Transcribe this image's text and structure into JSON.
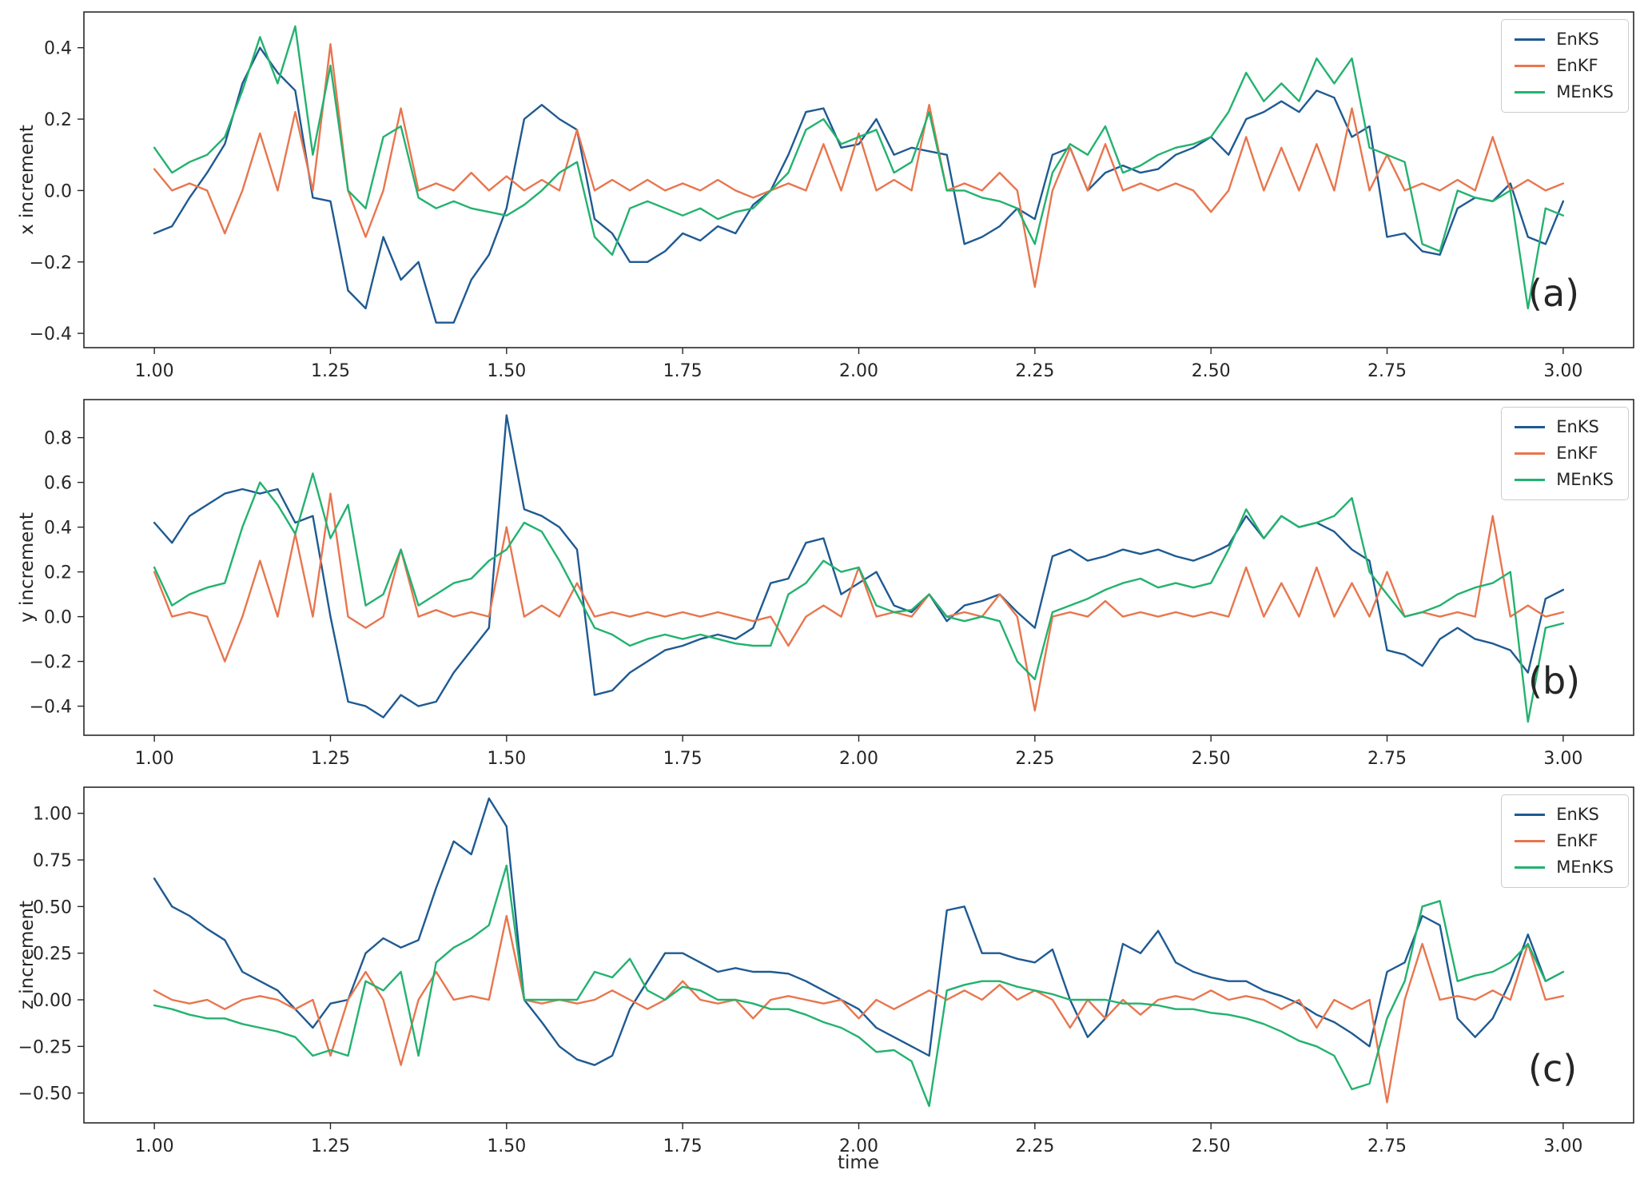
{
  "figure": {
    "background": "#ffffff",
    "xlabel": "time",
    "series_names": [
      "EnKS",
      "EnKF",
      "MEnKS"
    ],
    "series_colors": [
      "#1f5a92",
      "#e8764e",
      "#23b26f"
    ]
  },
  "chart_data": [
    {
      "id": "a",
      "type": "line",
      "panel_label": "(a)",
      "ylabel": "x increment",
      "xlabel": "",
      "x_start": 1.0,
      "x_step": 0.025,
      "xlim": [
        0.9,
        3.1
      ],
      "ylim": [
        -0.44,
        0.5
      ],
      "xticks": [
        1.0,
        1.25,
        1.5,
        1.75,
        2.0,
        2.25,
        2.5,
        2.75,
        3.0
      ],
      "xtick_labels": [
        "1.00",
        "1.25",
        "1.50",
        "1.75",
        "2.00",
        "2.25",
        "2.50",
        "2.75",
        "3.00"
      ],
      "yticks": [
        -0.4,
        -0.2,
        0.0,
        0.2,
        0.4
      ],
      "ytick_labels": [
        "−0.4",
        "−0.2",
        "0.0",
        "0.2",
        "0.4"
      ],
      "legend_position": "top-right",
      "grid": false,
      "series": [
        {
          "name": "EnKS",
          "color": "#1f5a92",
          "values": [
            -0.12,
            -0.1,
            -0.02,
            0.05,
            0.13,
            0.3,
            0.4,
            0.33,
            0.28,
            -0.02,
            -0.03,
            -0.28,
            -0.33,
            -0.13,
            -0.25,
            -0.2,
            -0.37,
            -0.37,
            -0.25,
            -0.18,
            -0.05,
            0.2,
            0.24,
            0.2,
            0.17,
            -0.08,
            -0.12,
            -0.2,
            -0.2,
            -0.17,
            -0.12,
            -0.14,
            -0.1,
            -0.12,
            -0.04,
            0.0,
            0.1,
            0.22,
            0.23,
            0.12,
            0.13,
            0.2,
            0.1,
            0.12,
            0.11,
            0.1,
            -0.15,
            -0.13,
            -0.1,
            -0.05,
            -0.08,
            0.1,
            0.12,
            0.0,
            0.05,
            0.07,
            0.05,
            0.06,
            0.1,
            0.12,
            0.15,
            0.1,
            0.2,
            0.22,
            0.25,
            0.22,
            0.28,
            0.26,
            0.15,
            0.18,
            -0.13,
            -0.12,
            -0.17,
            -0.18,
            -0.05,
            -0.02,
            -0.03,
            0.02,
            -0.13,
            -0.15,
            -0.03
          ]
        },
        {
          "name": "EnKF",
          "color": "#e8764e",
          "values": [
            0.06,
            0,
            0.02,
            0,
            -0.12,
            0,
            0.16,
            0,
            0.22,
            0,
            0.41,
            0,
            -0.13,
            0,
            0.23,
            0,
            0.02,
            0,
            0.05,
            0,
            0.04,
            0,
            0.03,
            0,
            0.17,
            0,
            0.03,
            0,
            0.03,
            0,
            0.02,
            0,
            0.03,
            0,
            -0.02,
            0,
            0.02,
            0,
            0.13,
            0,
            0.16,
            0,
            0.03,
            0,
            0.24,
            0,
            0.02,
            0,
            0.05,
            0,
            -0.27,
            0,
            0.12,
            0,
            0.13,
            0,
            0.02,
            0,
            0.02,
            0,
            -0.06,
            0,
            0.15,
            0,
            0.12,
            0,
            0.13,
            0,
            0.23,
            0,
            0.1,
            0,
            0.02,
            0,
            0.03,
            0,
            0.15,
            0,
            0.03,
            0,
            0.02
          ]
        },
        {
          "name": "MEnKS",
          "color": "#23b26f",
          "values": [
            0.12,
            0.05,
            0.08,
            0.1,
            0.15,
            0.28,
            0.43,
            0.3,
            0.46,
            0.1,
            0.35,
            0.0,
            -0.05,
            0.15,
            0.18,
            -0.02,
            -0.05,
            -0.03,
            -0.05,
            -0.06,
            -0.07,
            -0.04,
            0.0,
            0.05,
            0.08,
            -0.13,
            -0.18,
            -0.05,
            -0.03,
            -0.05,
            -0.07,
            -0.05,
            -0.08,
            -0.06,
            -0.05,
            0.0,
            0.05,
            0.17,
            0.2,
            0.13,
            0.15,
            0.17,
            0.05,
            0.08,
            0.22,
            0.0,
            0.0,
            -0.02,
            -0.03,
            -0.05,
            -0.15,
            0.05,
            0.13,
            0.1,
            0.18,
            0.05,
            0.07,
            0.1,
            0.12,
            0.13,
            0.15,
            0.22,
            0.33,
            0.25,
            0.3,
            0.25,
            0.37,
            0.3,
            0.37,
            0.12,
            0.1,
            0.08,
            -0.15,
            -0.17,
            0.0,
            -0.02,
            -0.03,
            0.0,
            -0.33,
            -0.05,
            -0.07
          ]
        }
      ]
    },
    {
      "id": "b",
      "type": "line",
      "panel_label": "(b)",
      "ylabel": "y increment",
      "xlabel": "",
      "x_start": 1.0,
      "x_step": 0.025,
      "xlim": [
        0.9,
        3.1
      ],
      "ylim": [
        -0.53,
        0.97
      ],
      "xticks": [
        1.0,
        1.25,
        1.5,
        1.75,
        2.0,
        2.25,
        2.5,
        2.75,
        3.0
      ],
      "xtick_labels": [
        "1.00",
        "1.25",
        "1.50",
        "1.75",
        "2.00",
        "2.25",
        "2.50",
        "2.75",
        "3.00"
      ],
      "yticks": [
        -0.4,
        -0.2,
        0.0,
        0.2,
        0.4,
        0.6,
        0.8
      ],
      "ytick_labels": [
        "−0.4",
        "−0.2",
        "0.0",
        "0.2",
        "0.4",
        "0.6",
        "0.8"
      ],
      "legend_position": "top-right",
      "grid": false,
      "series": [
        {
          "name": "EnKS",
          "color": "#1f5a92",
          "values": [
            0.42,
            0.33,
            0.45,
            0.5,
            0.55,
            0.57,
            0.55,
            0.57,
            0.42,
            0.45,
            0.0,
            -0.38,
            -0.4,
            -0.45,
            -0.35,
            -0.4,
            -0.38,
            -0.25,
            -0.15,
            -0.05,
            0.9,
            0.48,
            0.45,
            0.4,
            0.3,
            -0.35,
            -0.33,
            -0.25,
            -0.2,
            -0.15,
            -0.13,
            -0.1,
            -0.08,
            -0.1,
            -0.05,
            0.15,
            0.17,
            0.33,
            0.35,
            0.1,
            0.15,
            0.2,
            0.05,
            0.02,
            0.1,
            -0.02,
            0.05,
            0.07,
            0.1,
            0.02,
            -0.05,
            0.27,
            0.3,
            0.25,
            0.27,
            0.3,
            0.28,
            0.3,
            0.27,
            0.25,
            0.28,
            0.32,
            0.45,
            0.35,
            0.45,
            0.4,
            0.42,
            0.38,
            0.3,
            0.25,
            -0.15,
            -0.17,
            -0.22,
            -0.1,
            -0.05,
            -0.1,
            -0.12,
            -0.15,
            -0.25,
            0.08,
            0.12
          ]
        },
        {
          "name": "EnKF",
          "color": "#e8764e",
          "values": [
            0.2,
            0,
            0.02,
            0,
            -0.2,
            0,
            0.25,
            0,
            0.37,
            0,
            0.55,
            0,
            -0.05,
            0,
            0.3,
            0,
            0.03,
            0,
            0.02,
            0,
            0.4,
            0,
            0.05,
            0,
            0.15,
            0,
            0.02,
            0,
            0.02,
            0,
            0.02,
            0,
            0.02,
            0,
            -0.02,
            0,
            -0.13,
            0,
            0.05,
            0,
            0.22,
            0,
            0.02,
            0,
            0.1,
            0,
            0.02,
            0,
            0.1,
            0,
            -0.42,
            0,
            0.02,
            0,
            0.07,
            0,
            0.02,
            0,
            0.02,
            0,
            0.02,
            0,
            0.22,
            0,
            0.15,
            0,
            0.22,
            0,
            0.15,
            0,
            0.2,
            0,
            0.02,
            0,
            0.02,
            0,
            0.45,
            0,
            0.05,
            0,
            0.02
          ]
        },
        {
          "name": "MEnKS",
          "color": "#23b26f",
          "values": [
            0.22,
            0.05,
            0.1,
            0.13,
            0.15,
            0.4,
            0.6,
            0.5,
            0.37,
            0.64,
            0.35,
            0.5,
            0.05,
            0.1,
            0.3,
            0.05,
            0.1,
            0.15,
            0.17,
            0.25,
            0.3,
            0.42,
            0.38,
            0.25,
            0.1,
            -0.05,
            -0.08,
            -0.13,
            -0.1,
            -0.08,
            -0.1,
            -0.08,
            -0.1,
            -0.12,
            -0.13,
            -0.13,
            0.1,
            0.15,
            0.25,
            0.2,
            0.22,
            0.05,
            0.02,
            0.03,
            0.1,
            0.0,
            -0.02,
            0.0,
            -0.02,
            -0.2,
            -0.28,
            0.02,
            0.05,
            0.08,
            0.12,
            0.15,
            0.17,
            0.13,
            0.15,
            0.13,
            0.15,
            0.3,
            0.48,
            0.35,
            0.45,
            0.4,
            0.42,
            0.45,
            0.53,
            0.2,
            0.1,
            0.0,
            0.02,
            0.05,
            0.1,
            0.13,
            0.15,
            0.2,
            -0.47,
            -0.05,
            -0.03
          ]
        }
      ]
    },
    {
      "id": "c",
      "type": "line",
      "panel_label": "(c)",
      "ylabel": "z increment",
      "xlabel": "time",
      "x_start": 1.0,
      "x_step": 0.025,
      "xlim": [
        0.9,
        3.1
      ],
      "ylim": [
        -0.66,
        1.14
      ],
      "xticks": [
        1.0,
        1.25,
        1.5,
        1.75,
        2.0,
        2.25,
        2.5,
        2.75,
        3.0
      ],
      "xtick_labels": [
        "1.00",
        "1.25",
        "1.50",
        "1.75",
        "2.00",
        "2.25",
        "2.50",
        "2.75",
        "3.00"
      ],
      "yticks": [
        -0.5,
        -0.25,
        0.0,
        0.25,
        0.5,
        0.75,
        1.0
      ],
      "ytick_labels": [
        "−0.50",
        "−0.25",
        "0.00",
        "0.25",
        "0.50",
        "0.75",
        "1.00"
      ],
      "legend_position": "top-right",
      "grid": false,
      "series": [
        {
          "name": "EnKS",
          "color": "#1f5a92",
          "values": [
            0.65,
            0.5,
            0.45,
            0.38,
            0.32,
            0.15,
            0.1,
            0.05,
            -0.05,
            -0.15,
            -0.02,
            0.0,
            0.25,
            0.33,
            0.28,
            0.32,
            0.6,
            0.85,
            0.78,
            1.08,
            0.93,
            0.0,
            -0.12,
            -0.25,
            -0.32,
            -0.35,
            -0.3,
            -0.05,
            0.1,
            0.25,
            0.25,
            0.2,
            0.15,
            0.17,
            0.15,
            0.15,
            0.14,
            0.1,
            0.05,
            0.0,
            -0.05,
            -0.15,
            -0.2,
            -0.25,
            -0.3,
            0.48,
            0.5,
            0.25,
            0.25,
            0.22,
            0.2,
            0.27,
            0.0,
            -0.2,
            -0.1,
            0.3,
            0.25,
            0.37,
            0.2,
            0.15,
            0.12,
            0.1,
            0.1,
            0.05,
            0.02,
            -0.02,
            -0.08,
            -0.12,
            -0.18,
            -0.25,
            0.15,
            0.2,
            0.45,
            0.4,
            -0.1,
            -0.2,
            -0.1,
            0.1,
            0.35,
            0.1,
            0.15
          ]
        },
        {
          "name": "EnKF",
          "color": "#e8764e",
          "values": [
            0.05,
            0,
            -0.02,
            0,
            -0.05,
            0,
            0.02,
            0,
            -0.05,
            0,
            -0.3,
            0,
            0.15,
            0,
            -0.35,
            0,
            0.15,
            0,
            0.02,
            0,
            0.45,
            0,
            -0.02,
            0,
            -0.02,
            0,
            0.05,
            0,
            -0.05,
            0,
            0.1,
            0,
            -0.02,
            0,
            -0.1,
            0,
            0.02,
            0,
            -0.02,
            0,
            -0.1,
            0,
            -0.05,
            0,
            0.05,
            0,
            0.05,
            0,
            0.08,
            0,
            0.05,
            0,
            -0.15,
            0,
            -0.1,
            0,
            -0.08,
            0,
            0.02,
            0,
            0.05,
            0,
            0.02,
            0,
            -0.05,
            0,
            -0.15,
            0,
            -0.05,
            0,
            -0.55,
            0,
            0.3,
            0,
            0.02,
            0,
            0.05,
            0,
            0.3,
            0,
            0.02
          ]
        },
        {
          "name": "MEnKS",
          "color": "#23b26f",
          "values": [
            -0.03,
            -0.05,
            -0.08,
            -0.1,
            -0.1,
            -0.13,
            -0.15,
            -0.17,
            -0.2,
            -0.3,
            -0.27,
            -0.3,
            0.1,
            0.05,
            0.15,
            -0.3,
            0.2,
            0.28,
            0.33,
            0.4,
            0.72,
            0.0,
            0.0,
            0.0,
            0.0,
            0.15,
            0.12,
            0.22,
            0.05,
            0.0,
            0.07,
            0.05,
            0.0,
            0.0,
            -0.02,
            -0.05,
            -0.05,
            -0.08,
            -0.12,
            -0.15,
            -0.2,
            -0.28,
            -0.27,
            -0.33,
            -0.57,
            0.05,
            0.08,
            0.1,
            0.1,
            0.07,
            0.05,
            0.03,
            0.0,
            0.0,
            0.0,
            -0.02,
            -0.02,
            -0.03,
            -0.05,
            -0.05,
            -0.07,
            -0.08,
            -0.1,
            -0.13,
            -0.17,
            -0.22,
            -0.25,
            -0.3,
            -0.48,
            -0.45,
            -0.1,
            0.1,
            0.5,
            0.53,
            0.1,
            0.13,
            0.15,
            0.2,
            0.3,
            0.1,
            0.15
          ]
        }
      ]
    }
  ]
}
